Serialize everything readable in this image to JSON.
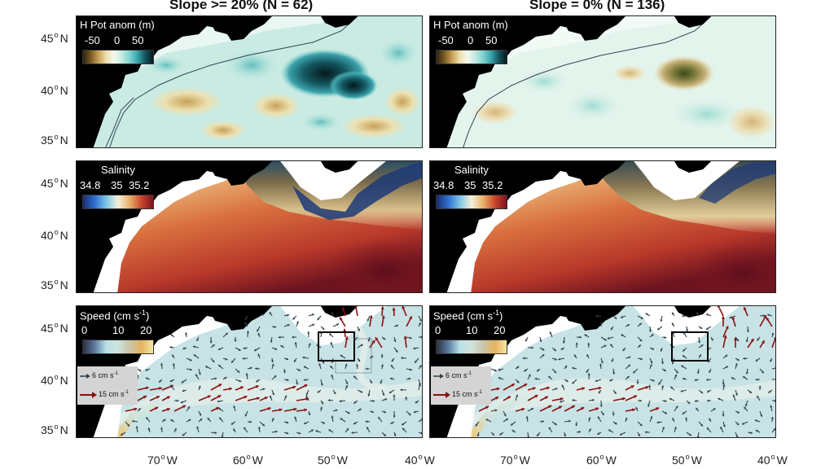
{
  "titles": {
    "left": "Slope >= 20% (N = 62)",
    "right": "Slope = 0% (N = 136)"
  },
  "lat_labels": [
    {
      "row": 0,
      "deg": "45",
      "hem": "N"
    },
    {
      "row": 0,
      "deg": "40",
      "hem": "N"
    },
    {
      "row": 0,
      "deg": "35",
      "hem": "N"
    },
    {
      "row": 1,
      "deg": "45",
      "hem": "N"
    },
    {
      "row": 1,
      "deg": "40",
      "hem": "N"
    },
    {
      "row": 1,
      "deg": "35",
      "hem": "N"
    },
    {
      "row": 2,
      "deg": "45",
      "hem": "N"
    },
    {
      "row": 2,
      "deg": "40",
      "hem": "N"
    },
    {
      "row": 2,
      "deg": "35",
      "hem": "N"
    }
  ],
  "lon_labels": [
    {
      "deg": "70",
      "hem": "W"
    },
    {
      "deg": "60",
      "hem": "W"
    },
    {
      "deg": "50",
      "hem": "W"
    },
    {
      "deg": "40",
      "hem": "W"
    },
    {
      "deg": "70",
      "hem": "W"
    },
    {
      "deg": "60",
      "hem": "W"
    },
    {
      "deg": "50",
      "hem": "W"
    },
    {
      "deg": "40",
      "hem": "W"
    }
  ],
  "colorbars": {
    "hpot": {
      "title": "H Pot anom (m)",
      "ticks": [
        "-50",
        "0",
        "50"
      ],
      "range": [
        -75,
        75
      ],
      "colors": [
        "#2a2410",
        "#7a5b22",
        "#c8a25a",
        "#ece0b0",
        "#f4f9ee",
        "#c2e9e1",
        "#7fd2cd",
        "#3aa2ab",
        "#13545d",
        "#061a1e"
      ]
    },
    "salinity": {
      "title": "Salinity",
      "ticks": [
        "34.8",
        "35",
        "35.2"
      ],
      "range": [
        34.7,
        35.3
      ],
      "colors": [
        "#1b2d6b",
        "#2f6fd0",
        "#7fc6e6",
        "#f4efd8",
        "#e9b06a",
        "#c8442c",
        "#7a1320"
      ]
    },
    "speed": {
      "title": "Speed (cm s",
      "title_sup": "-1",
      "title_end": ")",
      "ticks": [
        "0",
        "10",
        "20"
      ],
      "range": [
        0,
        20
      ],
      "colors": [
        "#2a3040",
        "#5c7aa0",
        "#b9e2e8",
        "#cfe3dc",
        "#c9c5a8",
        "#e3b45f",
        "#f6e7a3"
      ]
    }
  },
  "reference_arrows": [
    {
      "text": "6 cm s",
      "sup": "-1",
      "value": 6,
      "color": "#2e3f4a"
    },
    {
      "text": "15 cm s",
      "sup": "-1",
      "value": 15,
      "color": "#8b1010"
    }
  ],
  "colors": {
    "land": "#000000",
    "shelf": "#ffffff",
    "slow_arrow": "#2e3f4a",
    "fast_arrow": "#8b1010",
    "isobath": "#334455"
  },
  "map_extent": {
    "lon": [
      -80,
      -40
    ],
    "lat": [
      33,
      47
    ]
  }
}
